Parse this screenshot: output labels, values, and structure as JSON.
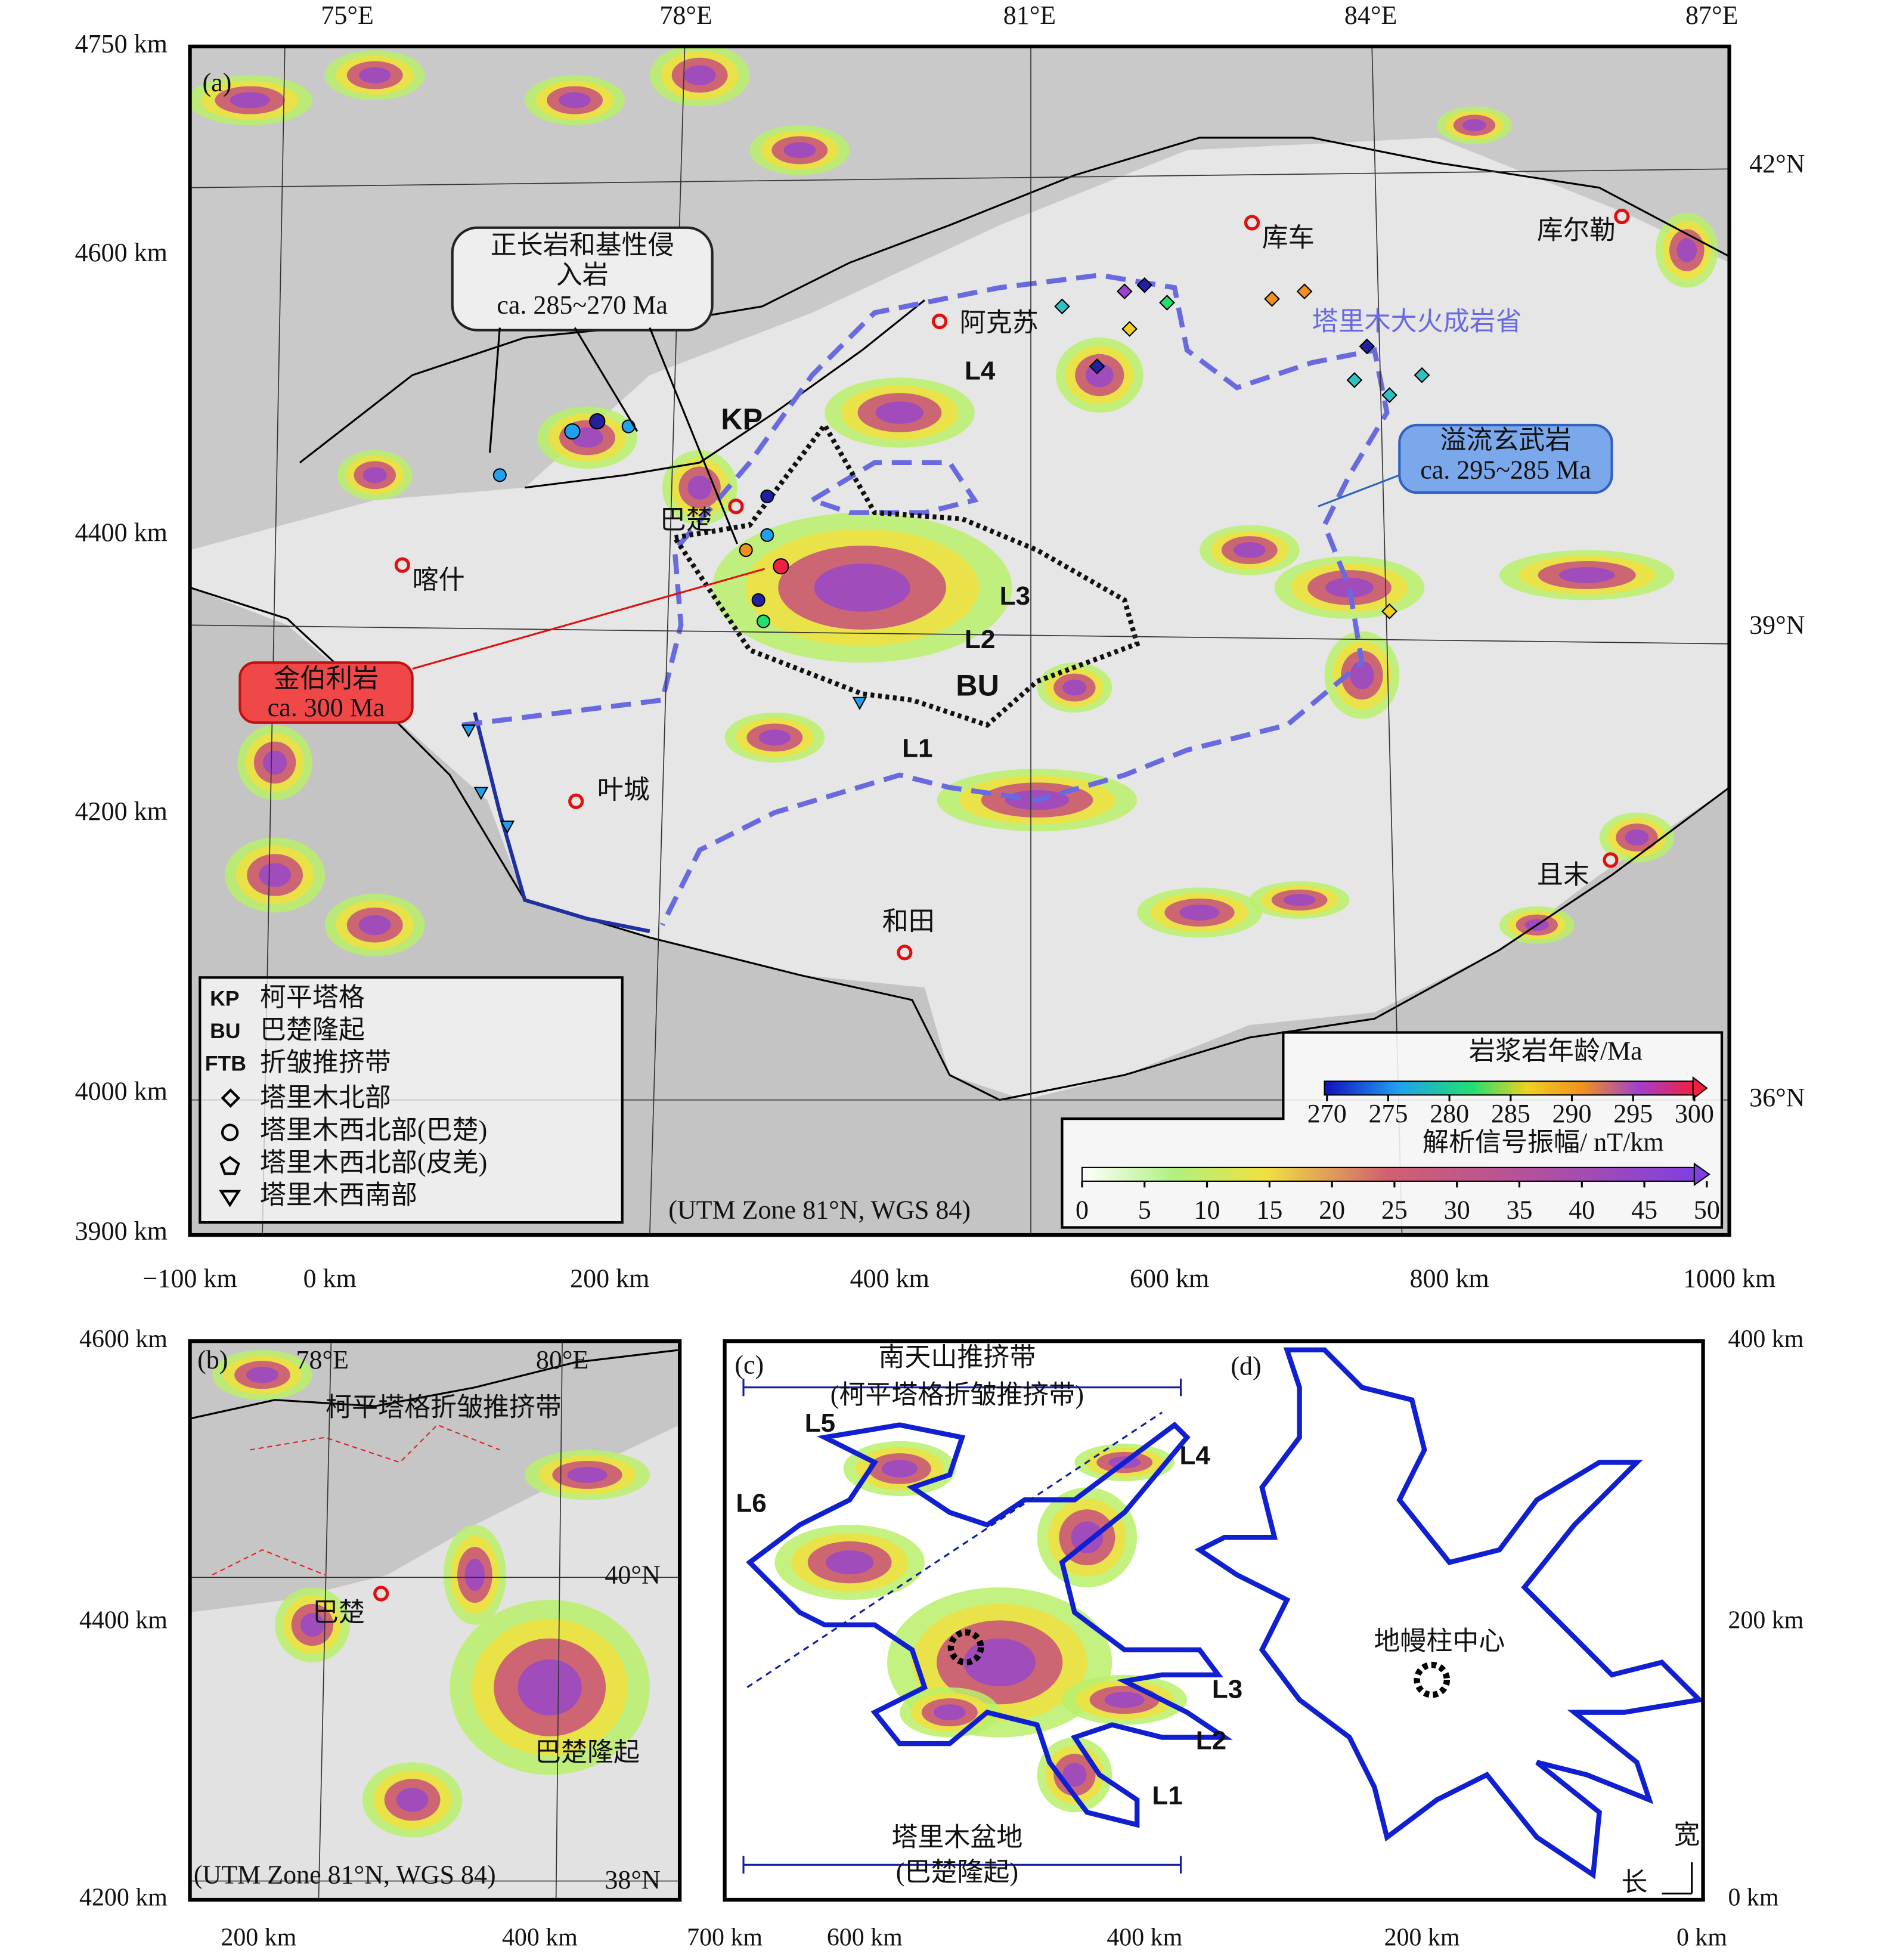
{
  "panel_a": {
    "label": "(a)",
    "lon_labels": [
      "75°E",
      "78°E",
      "81°E",
      "84°E",
      "87°E"
    ],
    "lat_labels": [
      "42°N",
      "39°N",
      "36°N"
    ],
    "y_labels": [
      "4750 km",
      "4600 km",
      "4400 km",
      "4200 km",
      "4000 km",
      "3900 km"
    ],
    "x_labels": [
      "−100 km",
      "0 km",
      "200 km",
      "400 km",
      "600 km",
      "800 km",
      "1000 km"
    ],
    "places": [
      "库车",
      "库尔勒",
      "阿克苏",
      "巴楚",
      "喀什",
      "叶城",
      "和田",
      "且末"
    ],
    "province": "塔里木大火成岩省",
    "structures": [
      "KP",
      "BU"
    ],
    "lineaments": [
      "L1",
      "L2",
      "L3",
      "L4"
    ],
    "callouts": [
      {
        "lines": [
          "正长岩和基性侵",
          "入岩"
        ],
        "age": "ca. 285~270 Ma"
      },
      {
        "lines": [
          "溢流玄武岩"
        ],
        "age": "ca. 295~285 Ma"
      },
      {
        "lines": [
          "金伯利岩"
        ],
        "age": "ca. 300 Ma"
      }
    ],
    "legend": [
      {
        "symbol": "KP",
        "text": "柯平塔格"
      },
      {
        "symbol": "BU",
        "text": "巴楚隆起"
      },
      {
        "symbol": "FTB",
        "text": "折皱推挤带"
      },
      {
        "text": "塔里木北部"
      },
      {
        "text": "塔里木西北部(巴楚)"
      },
      {
        "text": "塔里木西北部(皮羌)"
      },
      {
        "text": "塔里木西南部"
      }
    ],
    "projection": "(UTM Zone 81°N, WGS 84)",
    "age_scale": {
      "title": "岩浆岩年龄/Ma",
      "range": [
        270,
        300
      ],
      "ticks": [
        270,
        275,
        280,
        285,
        290,
        295,
        300
      ]
    },
    "amplitude_scale": {
      "title": "解析信号振幅/ nT/km",
      "range": [
        0,
        50
      ],
      "ticks": [
        0,
        5,
        10,
        15,
        20,
        25,
        30,
        35,
        40,
        45,
        50
      ]
    }
  },
  "panel_b": {
    "label": "(b)",
    "lon_labels": [
      "78°E",
      "80°E"
    ],
    "lat_labels": [
      "40°N",
      "38°N"
    ],
    "y_labels": [
      "4600 km",
      "4400 km",
      "4200 km"
    ],
    "x_labels": [
      "200 km",
      "400 km"
    ],
    "belt": "柯平塔格折皱推挤带",
    "place": "巴楚",
    "uplift": "巴楚隆起",
    "projection": "(UTM Zone 81°N, WGS 84)"
  },
  "panel_c": {
    "label": "(c)",
    "top": [
      "南天山推挤带",
      "(柯平塔格折皱推挤带)"
    ],
    "bottom": [
      "塔里木盆地",
      "(巴楚隆起)"
    ],
    "lineaments": [
      "L5",
      "L6",
      "L4",
      "L3",
      "L2",
      "L1"
    ],
    "x_labels": [
      "700 km",
      "600 km",
      "400 km",
      "200 km",
      "0 km"
    ]
  },
  "panel_d": {
    "label": "(d)",
    "center": "地幔柱中心",
    "width": "宽",
    "length": "长",
    "y_labels": [
      "400 km",
      "200 km",
      "0 km"
    ]
  }
}
